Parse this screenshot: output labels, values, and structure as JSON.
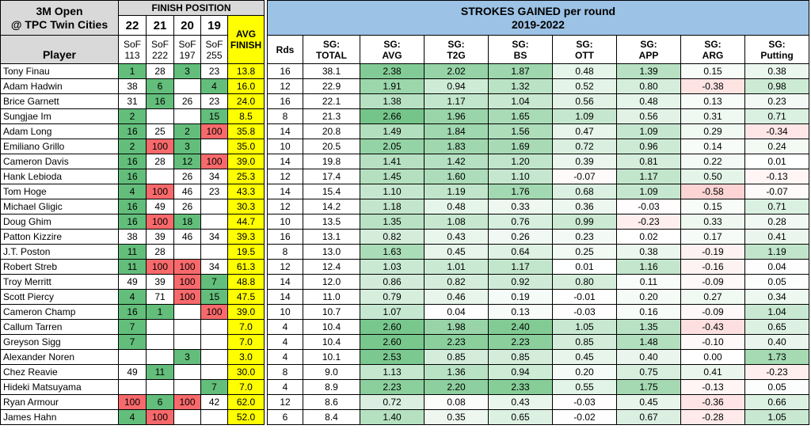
{
  "header": {
    "event_line1": "3M Open",
    "event_line2": "@ TPC Twin Cities",
    "player_label": "Player",
    "finish_position": "FINISH POSITION",
    "years": [
      "22",
      "21",
      "20",
      "19"
    ],
    "sof_label": "SoF",
    "sof_values": [
      "113",
      "222",
      "197",
      "255"
    ],
    "avg_line1": "AVG",
    "avg_line2": "FINISH",
    "sg_line1": "STROKES GAINED per round",
    "sg_line2": "2019-2022",
    "rds": "Rds",
    "sg_cols": [
      [
        "SG:",
        "TOTAL"
      ],
      [
        "SG:",
        "AVG"
      ],
      [
        "SG:",
        "T2G"
      ],
      [
        "SG:",
        "BS"
      ],
      [
        "SG:",
        "OTT"
      ],
      [
        "SG:",
        "APP"
      ],
      [
        "SG:",
        "ARG"
      ],
      [
        "SG:",
        "Putting"
      ]
    ]
  },
  "colors": {
    "finish_good": "#63be7b",
    "finish_bad": "#f8696b",
    "sg_pos": "#63be7b",
    "sg_neg": "#f8696b",
    "avg_yellow": "#ffff00"
  },
  "rows": [
    {
      "player": "Tony Finau",
      "f": [
        "1",
        "28",
        "3",
        "23"
      ],
      "avg": "13.8",
      "rds": "16",
      "total": "38.1",
      "sg": [
        "2.38",
        "2.02",
        "1.87",
        "0.48",
        "1.39",
        "0.15",
        "0.38"
      ]
    },
    {
      "player": "Adam Hadwin",
      "f": [
        "38",
        "6",
        "",
        "4"
      ],
      "avg": "16.0",
      "rds": "12",
      "total": "22.9",
      "sg": [
        "1.91",
        "0.94",
        "1.32",
        "0.52",
        "0.80",
        "-0.38",
        "0.98"
      ]
    },
    {
      "player": "Brice Garnett",
      "f": [
        "31",
        "16",
        "26",
        "23"
      ],
      "avg": "24.0",
      "rds": "16",
      "total": "22.1",
      "sg": [
        "1.38",
        "1.17",
        "1.04",
        "0.56",
        "0.48",
        "0.13",
        "0.23"
      ]
    },
    {
      "player": "Sungjae Im",
      "f": [
        "2",
        "",
        "",
        "15"
      ],
      "avg": "8.5",
      "rds": "8",
      "total": "21.3",
      "sg": [
        "2.66",
        "1.96",
        "1.65",
        "1.09",
        "0.56",
        "0.31",
        "0.71"
      ]
    },
    {
      "player": "Adam Long",
      "f": [
        "16",
        "25",
        "2",
        "100"
      ],
      "avg": "35.8",
      "rds": "14",
      "total": "20.8",
      "sg": [
        "1.49",
        "1.84",
        "1.56",
        "0.47",
        "1.09",
        "0.29",
        "-0.34"
      ]
    },
    {
      "player": "Emiliano Grillo",
      "f": [
        "2",
        "100",
        "3",
        ""
      ],
      "avg": "35.0",
      "rds": "10",
      "total": "20.5",
      "sg": [
        "2.05",
        "1.83",
        "1.69",
        "0.72",
        "0.96",
        "0.14",
        "0.24"
      ]
    },
    {
      "player": "Cameron Davis",
      "f": [
        "16",
        "28",
        "12",
        "100"
      ],
      "avg": "39.0",
      "rds": "14",
      "total": "19.8",
      "sg": [
        "1.41",
        "1.42",
        "1.20",
        "0.39",
        "0.81",
        "0.22",
        "0.01"
      ]
    },
    {
      "player": "Hank Lebioda",
      "f": [
        "16",
        "",
        "26",
        "34"
      ],
      "avg": "25.3",
      "rds": "12",
      "total": "17.4",
      "sg": [
        "1.45",
        "1.60",
        "1.10",
        "-0.07",
        "1.17",
        "0.50",
        "-0.13"
      ]
    },
    {
      "player": "Tom Hoge",
      "f": [
        "4",
        "100",
        "46",
        "23"
      ],
      "avg": "43.3",
      "rds": "14",
      "total": "15.4",
      "sg": [
        "1.10",
        "1.19",
        "1.76",
        "0.68",
        "1.09",
        "-0.58",
        "-0.07"
      ]
    },
    {
      "player": "Michael Gligic",
      "f": [
        "16",
        "49",
        "26",
        ""
      ],
      "avg": "30.3",
      "rds": "12",
      "total": "14.2",
      "sg": [
        "1.18",
        "0.48",
        "0.33",
        "0.36",
        "-0.03",
        "0.15",
        "0.71"
      ]
    },
    {
      "player": "Doug Ghim",
      "f": [
        "16",
        "100",
        "18",
        ""
      ],
      "avg": "44.7",
      "rds": "10",
      "total": "13.5",
      "sg": [
        "1.35",
        "1.08",
        "0.76",
        "0.99",
        "-0.23",
        "0.33",
        "0.28"
      ]
    },
    {
      "player": "Patton Kizzire",
      "f": [
        "38",
        "39",
        "46",
        "34"
      ],
      "avg": "39.3",
      "rds": "16",
      "total": "13.1",
      "sg": [
        "0.82",
        "0.43",
        "0.26",
        "0.23",
        "0.02",
        "0.17",
        "0.41"
      ]
    },
    {
      "player": "J.T. Poston",
      "f": [
        "11",
        "28",
        "",
        ""
      ],
      "avg": "19.5",
      "rds": "8",
      "total": "13.0",
      "sg": [
        "1.63",
        "0.45",
        "0.64",
        "0.25",
        "0.38",
        "-0.19",
        "1.19"
      ]
    },
    {
      "player": "Robert Streb",
      "f": [
        "11",
        "100",
        "100",
        "34"
      ],
      "avg": "61.3",
      "rds": "12",
      "total": "12.4",
      "sg": [
        "1.03",
        "1.01",
        "1.17",
        "0.01",
        "1.16",
        "-0.16",
        "0.04"
      ]
    },
    {
      "player": "Troy Merritt",
      "f": [
        "49",
        "39",
        "100",
        "7"
      ],
      "avg": "48.8",
      "rds": "14",
      "total": "12.0",
      "sg": [
        "0.86",
        "0.82",
        "0.92",
        "0.80",
        "0.11",
        "-0.09",
        "0.05"
      ]
    },
    {
      "player": "Scott Piercy",
      "f": [
        "4",
        "71",
        "100",
        "15"
      ],
      "avg": "47.5",
      "rds": "14",
      "total": "11.0",
      "sg": [
        "0.79",
        "0.46",
        "0.19",
        "-0.01",
        "0.20",
        "0.27",
        "0.34"
      ]
    },
    {
      "player": "Cameron Champ",
      "f": [
        "16",
        "1",
        "",
        "100"
      ],
      "avg": "39.0",
      "rds": "10",
      "total": "10.7",
      "sg": [
        "1.07",
        "0.04",
        "0.13",
        "-0.03",
        "0.16",
        "-0.09",
        "1.04"
      ]
    },
    {
      "player": "Callum Tarren",
      "f": [
        "7",
        "",
        "",
        ""
      ],
      "avg": "7.0",
      "rds": "4",
      "total": "10.4",
      "sg": [
        "2.60",
        "1.98",
        "2.40",
        "1.05",
        "1.35",
        "-0.43",
        "0.65"
      ]
    },
    {
      "player": "Greyson Sigg",
      "f": [
        "7",
        "",
        "",
        ""
      ],
      "avg": "7.0",
      "rds": "4",
      "total": "10.4",
      "sg": [
        "2.60",
        "2.23",
        "2.23",
        "0.85",
        "1.48",
        "-0.10",
        "0.40"
      ]
    },
    {
      "player": "Alexander Noren",
      "f": [
        "",
        "",
        "3",
        ""
      ],
      "avg": "3.0",
      "rds": "4",
      "total": "10.1",
      "sg": [
        "2.53",
        "0.85",
        "0.85",
        "0.45",
        "0.40",
        "0.00",
        "1.73"
      ]
    },
    {
      "player": "Chez Reavie",
      "f": [
        "49",
        "11",
        "",
        ""
      ],
      "avg": "30.0",
      "rds": "8",
      "total": "9.0",
      "sg": [
        "1.13",
        "1.36",
        "0.94",
        "0.20",
        "0.75",
        "0.41",
        "-0.23"
      ]
    },
    {
      "player": "Hideki Matsuyama",
      "f": [
        "",
        "",
        "",
        "7"
      ],
      "avg": "7.0",
      "rds": "4",
      "total": "8.9",
      "sg": [
        "2.23",
        "2.20",
        "2.33",
        "0.55",
        "1.75",
        "-0.13",
        "0.05"
      ]
    },
    {
      "player": "Ryan Armour",
      "f": [
        "100",
        "6",
        "100",
        "42"
      ],
      "avg": "62.0",
      "rds": "12",
      "total": "8.6",
      "sg": [
        "0.72",
        "0.08",
        "0.43",
        "-0.03",
        "0.45",
        "-0.36",
        "0.66"
      ]
    },
    {
      "player": "James Hahn",
      "f": [
        "4",
        "100",
        "",
        ""
      ],
      "avg": "52.0",
      "rds": "6",
      "total": "8.4",
      "sg": [
        "1.40",
        "0.35",
        "0.65",
        "-0.02",
        "0.67",
        "-0.28",
        "1.05"
      ]
    }
  ]
}
